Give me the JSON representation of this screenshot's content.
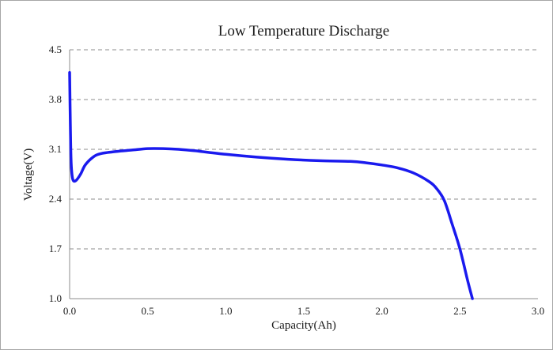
{
  "chart_data": {
    "type": "line",
    "title": "Low Temperature Discharge",
    "xlabel": "Capacity(Ah)",
    "ylabel": "Voltage(V)",
    "xlim": [
      0.0,
      3.0
    ],
    "ylim": [
      1.0,
      4.5
    ],
    "x_ticks": [
      "0.0",
      "0.5",
      "1.0",
      "1.5",
      "2.0",
      "2.5",
      "3.0"
    ],
    "y_ticks": [
      "1.0",
      "1.7",
      "2.4",
      "3.1",
      "3.8",
      "4.5"
    ],
    "grid": "horizontal-dashed",
    "series": [
      {
        "color": "#1a1aee",
        "points": [
          [
            0.0,
            4.18
          ],
          [
            0.005,
            3.4
          ],
          [
            0.01,
            2.9
          ],
          [
            0.02,
            2.68
          ],
          [
            0.04,
            2.66
          ],
          [
            0.07,
            2.75
          ],
          [
            0.1,
            2.88
          ],
          [
            0.15,
            2.99
          ],
          [
            0.2,
            3.04
          ],
          [
            0.3,
            3.07
          ],
          [
            0.4,
            3.09
          ],
          [
            0.5,
            3.11
          ],
          [
            0.6,
            3.11
          ],
          [
            0.7,
            3.1
          ],
          [
            0.8,
            3.08
          ],
          [
            1.0,
            3.03
          ],
          [
            1.2,
            2.99
          ],
          [
            1.4,
            2.96
          ],
          [
            1.6,
            2.94
          ],
          [
            1.8,
            2.93
          ],
          [
            1.9,
            2.91
          ],
          [
            2.0,
            2.88
          ],
          [
            2.1,
            2.84
          ],
          [
            2.2,
            2.77
          ],
          [
            2.3,
            2.65
          ],
          [
            2.35,
            2.55
          ],
          [
            2.4,
            2.38
          ],
          [
            2.45,
            2.05
          ],
          [
            2.5,
            1.7
          ],
          [
            2.55,
            1.25
          ],
          [
            2.58,
            1.0
          ]
        ]
      }
    ]
  }
}
